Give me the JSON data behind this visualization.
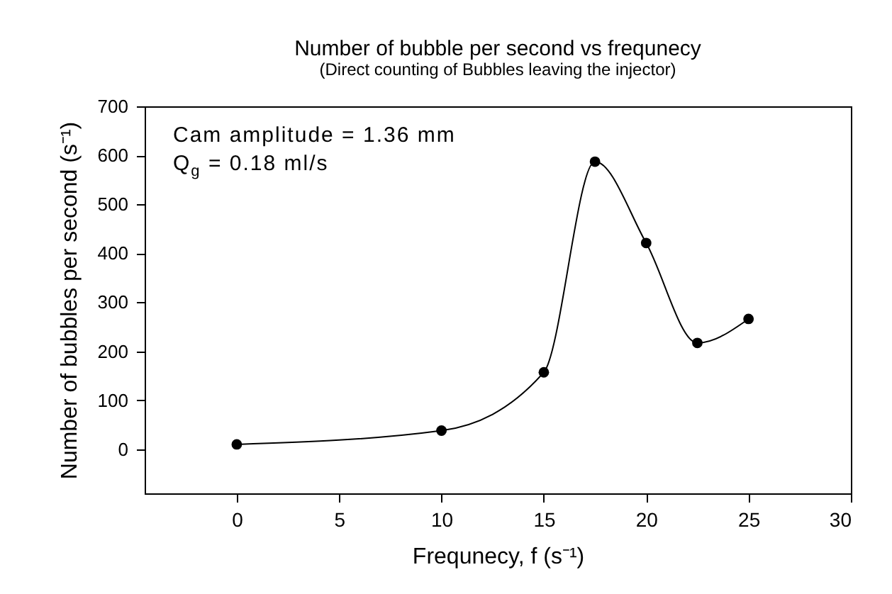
{
  "chart_data": {
    "type": "line",
    "title": "Number of bubble per second vs frequnecy",
    "subtitle": "(Direct counting of Bubbles leaving the injector)",
    "xlabel": "Frequnecy, f (s⁻¹)",
    "ylabel": "Number of bubbles per second (s⁻¹)",
    "annotations": [
      "Cam amplitude = 1.36 mm",
      "Q$_{g}$ = 0.18 ml/s"
    ],
    "x": [
      0,
      10,
      15,
      17.5,
      20,
      22.5,
      25
    ],
    "series": [
      {
        "color": "#000000",
        "values": [
          10,
          38,
          157,
          587,
          421,
          217,
          266
        ]
      }
    ],
    "xlim": [
      -4.5,
      30
    ],
    "ylim": [
      -90,
      700
    ],
    "xticks": [
      0,
      5,
      10,
      15,
      20,
      25,
      30
    ],
    "yticks": [
      0,
      100,
      200,
      300,
      400,
      500,
      600,
      700
    ],
    "marker": "circle",
    "line_style": "solid"
  }
}
